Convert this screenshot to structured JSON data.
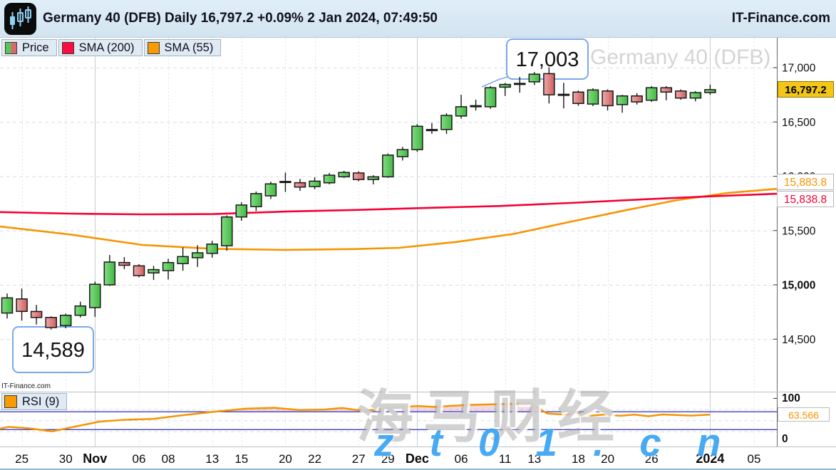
{
  "header": {
    "title": "Germany 40 (DFB) Daily 16,797.2 +0.09% 2 Jan 2024, 07:49:50",
    "brand": "IT-Finance.com"
  },
  "legend": {
    "price_label": "Price",
    "sma200_label": "SMA (200)",
    "sma55_label": "SMA (55)"
  },
  "colors": {
    "candle_up": "#44bc44",
    "candle_down": "#d16060",
    "sma200": "#f50035",
    "sma55": "#f79400",
    "rsi_line": "#f79400",
    "rsi_band": "#2d2dbb",
    "last_price_bg": "#f3c617",
    "watermark_url_blue": "#38a3f3",
    "annotation_border": "#7aa9e8"
  },
  "price_labels": {
    "last": "16,797.2",
    "sma55": "15,883.8",
    "sma200": "15,838.8"
  },
  "annotations": {
    "high": "17,003",
    "low": "14,589"
  },
  "watermarks": {
    "chart": "Germany 40 (DFB)",
    "site_small": "IT-Finance.com",
    "cn": "海马财经",
    "url": "zt01.cn"
  },
  "axis": {
    "y_ticks": [
      {
        "label": "17,000",
        "price": 17000,
        "bold": false
      },
      {
        "label": "16,500",
        "price": 16500,
        "bold": false
      },
      {
        "label": "16,000",
        "price": 16000,
        "bold": false
      },
      {
        "label": "15,500",
        "price": 15500,
        "bold": false
      },
      {
        "label": "15,000",
        "price": 15000,
        "bold": true
      },
      {
        "label": "14,500",
        "price": 14500,
        "bold": false
      }
    ],
    "x_ticks": [
      {
        "label": "25",
        "i": 1,
        "bold": false
      },
      {
        "label": "30",
        "i": 4,
        "bold": false
      },
      {
        "label": "Nov",
        "i": 6,
        "bold": true
      },
      {
        "label": "06",
        "i": 9,
        "bold": false
      },
      {
        "label": "08",
        "i": 11,
        "bold": false
      },
      {
        "label": "13",
        "i": 14,
        "bold": false
      },
      {
        "label": "15",
        "i": 16,
        "bold": false
      },
      {
        "label": "20",
        "i": 19,
        "bold": false
      },
      {
        "label": "22",
        "i": 21,
        "bold": false
      },
      {
        "label": "27",
        "i": 24,
        "bold": false
      },
      {
        "label": "29",
        "i": 26,
        "bold": false
      },
      {
        "label": "Dec",
        "i": 28,
        "bold": true
      },
      {
        "label": "06",
        "i": 31,
        "bold": false
      },
      {
        "label": "11",
        "i": 34,
        "bold": false
      },
      {
        "label": "13",
        "i": 36,
        "bold": false
      },
      {
        "label": "18",
        "i": 39,
        "bold": false
      },
      {
        "label": "20",
        "i": 41,
        "bold": false
      },
      {
        "label": "26",
        "i": 44,
        "bold": false
      },
      {
        "label": "2024",
        "i": 48,
        "bold": true
      },
      {
        "label": "05",
        "i": 51,
        "bold": false
      }
    ]
  },
  "rsi": {
    "legend": "RSI (9)",
    "period": 9,
    "value_label": "63.566",
    "scale_top": "100",
    "scale_bottom": "0",
    "upper": 70,
    "lower": 30,
    "points": [
      [
        0,
        32
      ],
      [
        12,
        36
      ],
      [
        40,
        33
      ],
      [
        73,
        26
      ],
      [
        100,
        35
      ],
      [
        140,
        48
      ],
      [
        175,
        52
      ],
      [
        215,
        54
      ],
      [
        255,
        62
      ],
      [
        300,
        70
      ],
      [
        345,
        77
      ],
      [
        385,
        79
      ],
      [
        420,
        74
      ],
      [
        455,
        75
      ],
      [
        480,
        78.5
      ],
      [
        510,
        72
      ],
      [
        545,
        78
      ],
      [
        585,
        83
      ],
      [
        610,
        81
      ],
      [
        650,
        85
      ],
      [
        695,
        87
      ],
      [
        745,
        89
      ],
      [
        768,
        66
      ],
      [
        790,
        64
      ],
      [
        810,
        67
      ],
      [
        830,
        61.5
      ],
      [
        850,
        64
      ],
      [
        870,
        61
      ],
      [
        890,
        63.5
      ],
      [
        910,
        60
      ],
      [
        930,
        64
      ],
      [
        950,
        62.5
      ],
      [
        970,
        61.5
      ],
      [
        996,
        63.566
      ]
    ]
  },
  "chart_data": {
    "type": "candlestick",
    "symbol": "Germany 40 (DFB)",
    "timeframe": "Daily",
    "last_price": 16797.2,
    "change_pct": "+0.09%",
    "timestamp": "2 Jan 2024, 07:49:50",
    "ylim": [
      14350,
      17150
    ],
    "y_gridlines": [
      14500,
      15000,
      15500,
      16000,
      16500,
      17000
    ],
    "dates": [
      "24 Oct",
      "25 Oct",
      "26 Oct",
      "27 Oct",
      "30 Oct",
      "31 Oct",
      "1 Nov",
      "2 Nov",
      "3 Nov",
      "6 Nov",
      "7 Nov",
      "8 Nov",
      "9 Nov",
      "10 Nov",
      "13 Nov",
      "14 Nov",
      "15 Nov",
      "16 Nov",
      "17 Nov",
      "20 Nov",
      "21 Nov",
      "22 Nov",
      "23 Nov",
      "24 Nov",
      "27 Nov",
      "28 Nov",
      "29 Nov",
      "30 Nov",
      "1 Dec",
      "4 Dec",
      "5 Dec",
      "6 Dec",
      "7 Dec",
      "8 Dec",
      "11 Dec",
      "12 Dec",
      "13 Dec",
      "14 Dec",
      "15 Dec",
      "18 Dec",
      "19 Dec",
      "20 Dec",
      "21 Dec",
      "22 Dec",
      "26 Dec",
      "27 Dec",
      "28 Dec",
      "29 Dec",
      "2 Jan"
    ],
    "candles": [
      [
        14740,
        14920,
        14690,
        14880
      ],
      [
        14870,
        14965,
        14670,
        14755
      ],
      [
        14755,
        14815,
        14635,
        14700
      ],
      [
        14700,
        14710,
        14589,
        14607
      ],
      [
        14625,
        14735,
        14600,
        14720
      ],
      [
        14720,
        14845,
        14700,
        14805
      ],
      [
        14790,
        15030,
        14705,
        15005
      ],
      [
        15000,
        15275,
        14990,
        15210
      ],
      [
        15205,
        15255,
        15145,
        15180
      ],
      [
        15175,
        15190,
        15070,
        15085
      ],
      [
        15110,
        15175,
        15045,
        15140
      ],
      [
        15130,
        15240,
        15050,
        15205
      ],
      [
        15195,
        15345,
        15130,
        15260
      ],
      [
        15250,
        15365,
        15165,
        15295
      ],
      [
        15290,
        15405,
        15250,
        15375
      ],
      [
        15360,
        15640,
        15315,
        15625
      ],
      [
        15625,
        15760,
        15590,
        15735
      ],
      [
        15720,
        15860,
        15680,
        15840
      ],
      [
        15820,
        15950,
        15790,
        15930
      ],
      [
        15950,
        16035,
        15855,
        15952
      ],
      [
        15940,
        15975,
        15865,
        15900
      ],
      [
        15905,
        15990,
        15880,
        15955
      ],
      [
        15940,
        16030,
        15925,
        16010
      ],
      [
        15995,
        16050,
        15985,
        16035
      ],
      [
        16030,
        16045,
        15955,
        15970
      ],
      [
        15970,
        16010,
        15925,
        15995
      ],
      [
        15995,
        16210,
        15985,
        16195
      ],
      [
        16180,
        16270,
        16145,
        16245
      ],
      [
        16245,
        16480,
        16225,
        16460
      ],
      [
        16428,
        16490,
        16390,
        16430
      ],
      [
        16430,
        16580,
        16390,
        16560
      ],
      [
        16555,
        16750,
        16530,
        16640
      ],
      [
        16645,
        16705,
        16605,
        16650
      ],
      [
        16640,
        16830,
        16620,
        16815
      ],
      [
        16820,
        16860,
        16740,
        16845
      ],
      [
        16845,
        16915,
        16770,
        16855
      ],
      [
        16870,
        16960,
        16840,
        16940
      ],
      [
        16945,
        17003,
        16670,
        16750
      ],
      [
        16755,
        16860,
        16625,
        16750
      ],
      [
        16775,
        16790,
        16650,
        16670
      ],
      [
        16665,
        16810,
        16645,
        16795
      ],
      [
        16785,
        16800,
        16605,
        16650
      ],
      [
        16660,
        16750,
        16585,
        16740
      ],
      [
        16740,
        16765,
        16660,
        16685
      ],
      [
        16700,
        16830,
        16685,
        16815
      ],
      [
        16815,
        16830,
        16700,
        16775
      ],
      [
        16785,
        16800,
        16705,
        16720
      ],
      [
        16720,
        16785,
        16690,
        16770
      ],
      [
        16770,
        16843,
        16750,
        16797.2
      ]
    ],
    "sma200": [
      [
        0,
        15670
      ],
      [
        100,
        15656
      ],
      [
        200,
        15649
      ],
      [
        300,
        15652
      ],
      [
        400,
        15675
      ],
      [
        500,
        15690
      ],
      [
        600,
        15709
      ],
      [
        700,
        15726
      ],
      [
        800,
        15754
      ],
      [
        900,
        15786
      ],
      [
        1000,
        15816
      ],
      [
        1090,
        15838.8
      ]
    ],
    "sma55": [
      [
        0,
        15537
      ],
      [
        100,
        15462
      ],
      [
        200,
        15367
      ],
      [
        300,
        15332
      ],
      [
        400,
        15322
      ],
      [
        500,
        15330
      ],
      [
        560,
        15341
      ],
      [
        640,
        15395
      ],
      [
        720,
        15468
      ],
      [
        800,
        15580
      ],
      [
        880,
        15690
      ],
      [
        950,
        15780
      ],
      [
        1020,
        15845
      ],
      [
        1090,
        15883.8
      ]
    ]
  }
}
